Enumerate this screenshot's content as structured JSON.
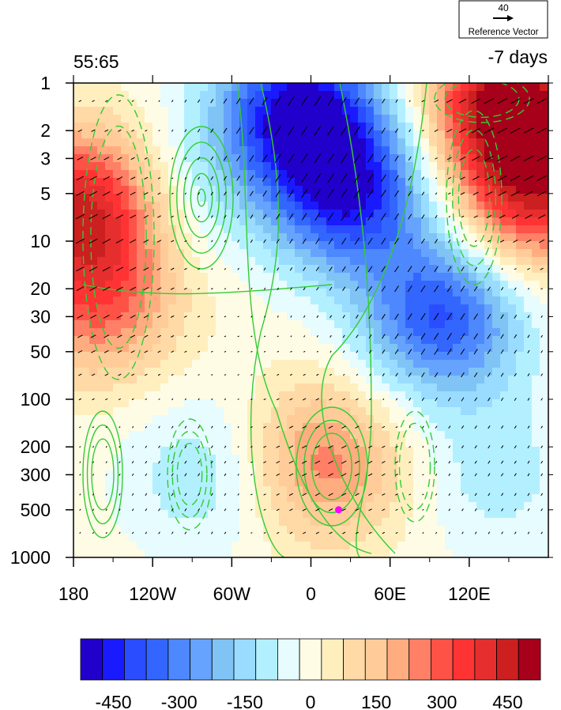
{
  "chart_data": {
    "type": "heatmap",
    "title_left": "55:65",
    "title_right": "-7 days",
    "xlabel": "",
    "ylabel": "",
    "x_ticks": [
      {
        "lon": 180,
        "label": "180"
      },
      {
        "lon": 240,
        "label": "120W"
      },
      {
        "lon": 300,
        "label": "60W"
      },
      {
        "lon": 360,
        "label": "0"
      },
      {
        "lon": 420,
        "label": "60E"
      },
      {
        "lon": 480,
        "label": "120E"
      }
    ],
    "xlim": [
      180,
      540
    ],
    "y_scale": "log",
    "y_inverted": true,
    "ylim": [
      1,
      1000
    ],
    "y_ticks": [
      {
        "p": 1,
        "label": "1"
      },
      {
        "p": 2,
        "label": "2"
      },
      {
        "p": 3,
        "label": "3"
      },
      {
        "p": 5,
        "label": "5"
      },
      {
        "p": 10,
        "label": "10"
      },
      {
        "p": 20,
        "label": "20"
      },
      {
        "p": 30,
        "label": "30"
      },
      {
        "p": 50,
        "label": "50"
      },
      {
        "p": 100,
        "label": "100"
      },
      {
        "p": 200,
        "label": "200"
      },
      {
        "p": 300,
        "label": "300"
      },
      {
        "p": 500,
        "label": "500"
      },
      {
        "p": 1000,
        "label": "1000"
      }
    ],
    "colorbar": {
      "colors": [
        "#2200cc",
        "#1a1aff",
        "#2a4dff",
        "#3366ff",
        "#4d88ff",
        "#66a3ff",
        "#7fc4f5",
        "#99dcff",
        "#b3f0ff",
        "#e6fcff",
        "#fffce6",
        "#ffefbf",
        "#ffd9a6",
        "#ffcc99",
        "#ffad80",
        "#ff8066",
        "#ff5247",
        "#ff3333",
        "#e62e2e",
        "#cc1f1f",
        "#a6001a"
      ],
      "labels": [
        {
          "value": -450,
          "text": "-450"
        },
        {
          "value": -300,
          "text": "-300"
        },
        {
          "value": -150,
          "text": "-150"
        },
        {
          "value": 0,
          "text": "0"
        },
        {
          "value": 150,
          "text": "150"
        },
        {
          "value": 300,
          "text": "300"
        },
        {
          "value": 450,
          "text": "450"
        }
      ],
      "min": -525,
      "max": 525
    },
    "shading_features": [
      {
        "lon": 190,
        "p": 6,
        "value": 420
      },
      {
        "lon": 200,
        "p": 25,
        "value": 250
      },
      {
        "lon": 255,
        "p": 5,
        "value": -100
      },
      {
        "lon": 350,
        "p": 1.5,
        "value": -480
      },
      {
        "lon": 390,
        "p": 5,
        "value": -420
      },
      {
        "lon": 460,
        "p": 30,
        "value": -380
      },
      {
        "lon": 510,
        "p": 1.3,
        "value": 500
      },
      {
        "lon": 530,
        "p": 5,
        "value": 380
      },
      {
        "lon": 370,
        "p": 250,
        "value": 250
      },
      {
        "lon": 280,
        "p": 300,
        "value": -120
      },
      {
        "lon": 500,
        "p": 300,
        "value": -100
      }
    ],
    "vector_reference": {
      "value": "40",
      "label": "Reference Vector"
    },
    "marker": {
      "lon": 381,
      "p": 500,
      "color": "#ff00ff"
    }
  }
}
